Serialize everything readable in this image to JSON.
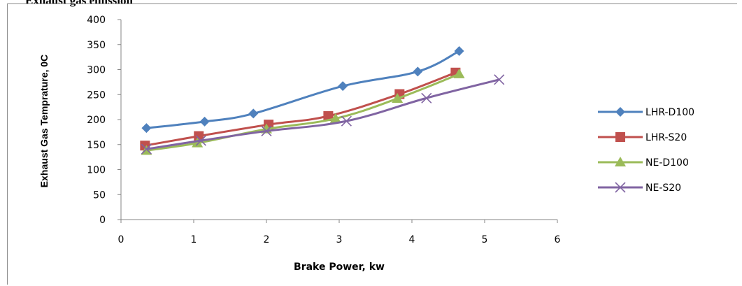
{
  "heading": "Exhaust gas emission",
  "chart_data": {
    "type": "line",
    "xlabel": "Brake Power, kw",
    "ylabel": "Exhaust Gas Temprature, 0C",
    "xlim": [
      0,
      6
    ],
    "ylim": [
      0,
      400
    ],
    "xticks": [
      0,
      1,
      2,
      3,
      4,
      5,
      6
    ],
    "yticks": [
      0,
      50,
      100,
      150,
      200,
      250,
      300,
      350,
      400
    ],
    "grid": false,
    "legend_position": "right",
    "series": [
      {
        "name": "LHR-D100",
        "color": "#4f81bd",
        "marker": "diamond",
        "points": [
          [
            0.35,
            183
          ],
          [
            1.15,
            196
          ],
          [
            1.82,
            212
          ],
          [
            3.05,
            267
          ],
          [
            4.08,
            296
          ],
          [
            4.65,
            337
          ]
        ]
      },
      {
        "name": "LHR-S20",
        "color": "#c0504d",
        "marker": "square",
        "points": [
          [
            0.33,
            148
          ],
          [
            1.07,
            167
          ],
          [
            2.03,
            190
          ],
          [
            2.85,
            207
          ],
          [
            3.83,
            251
          ],
          [
            4.6,
            294
          ]
        ]
      },
      {
        "name": "NE-D100",
        "color": "#9bbb59",
        "marker": "triangle",
        "points": [
          [
            0.35,
            138
          ],
          [
            1.05,
            153
          ],
          [
            2.0,
            181
          ],
          [
            2.95,
            202
          ],
          [
            3.8,
            242
          ],
          [
            4.65,
            291
          ]
        ]
      },
      {
        "name": "NE-S20",
        "color": "#8064a2",
        "marker": "x",
        "points": [
          [
            0.35,
            141
          ],
          [
            1.1,
            158
          ],
          [
            2.0,
            177
          ],
          [
            3.1,
            197
          ],
          [
            4.2,
            243
          ],
          [
            5.2,
            280
          ]
        ]
      }
    ]
  }
}
